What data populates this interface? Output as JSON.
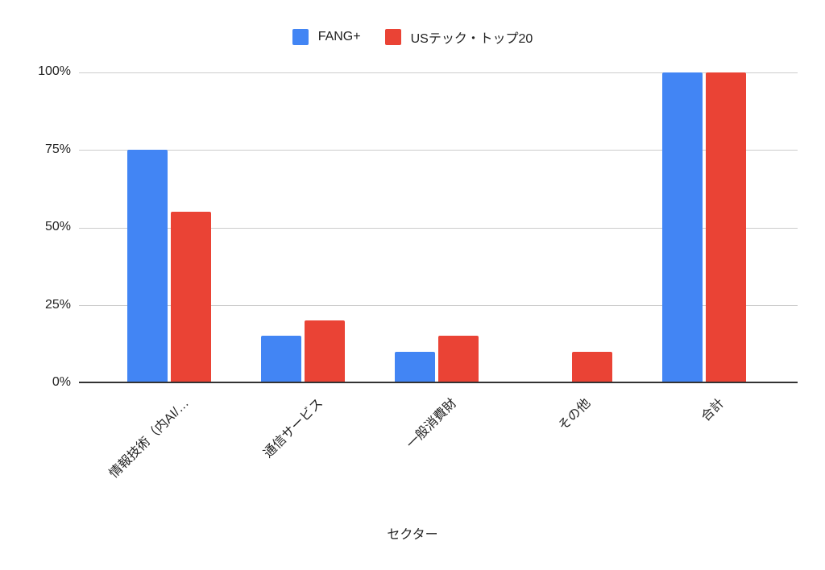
{
  "chart_data": {
    "type": "bar",
    "title": "",
    "xlabel": "セクター",
    "ylabel": "",
    "ylim": [
      0,
      100
    ],
    "yticks": [
      "0%",
      "25%",
      "50%",
      "75%",
      "100%"
    ],
    "grid": true,
    "legend_position": "top",
    "categories": [
      "情報技術（内AI/…",
      "通信サービス",
      "一般消費財",
      "その他",
      "合計"
    ],
    "series": [
      {
        "name": "FANG+",
        "color": "#4285f4",
        "values": [
          75,
          15,
          10,
          0,
          100
        ]
      },
      {
        "name": "USテック・トップ20",
        "color": "#ea4335",
        "values": [
          55,
          20,
          15,
          10,
          100
        ]
      }
    ]
  },
  "legend": {
    "items": [
      "FANG+",
      "USテック・トップ20"
    ]
  }
}
